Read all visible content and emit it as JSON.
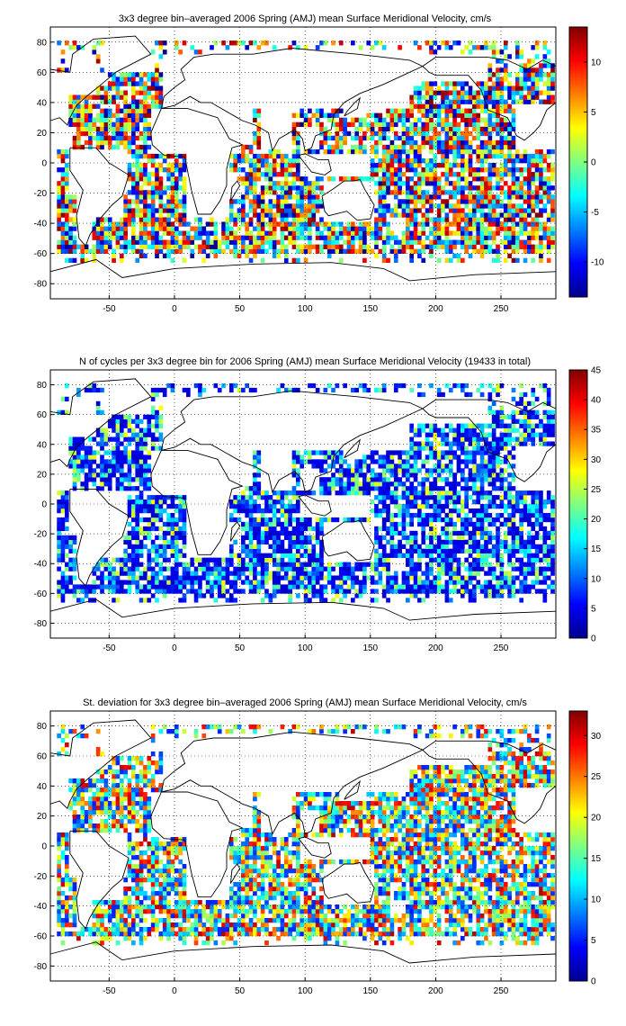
{
  "chart_data": [
    {
      "type": "heatmap",
      "title": "3x3 degree bin–averaged 2006 Spring (AMJ) mean Surface Meridional Velocity, cm/s",
      "xlim": [
        -95,
        292
      ],
      "ylim": [
        -90,
        90
      ],
      "xticks": [
        "-50",
        "0",
        "50",
        "100",
        "150",
        "200",
        "250"
      ],
      "yticks": [
        "80",
        "60",
        "40",
        "20",
        "0",
        "-20",
        "-40",
        "-60",
        "-80"
      ],
      "grid": true,
      "colorbar": {
        "range": [
          -13.5,
          13.5
        ],
        "ticks": [
          "10",
          "5",
          "0",
          "-5",
          "-10"
        ],
        "colormap": "jet"
      },
      "bin_size_deg": 3
    },
    {
      "type": "heatmap",
      "title": "N of cycles per 3x3 degree bin for 2006 Spring (AMJ) mean Surface Meridional Velocity (19433 in total)",
      "xlim": [
        -95,
        292
      ],
      "ylim": [
        -90,
        90
      ],
      "xticks": [
        "-50",
        "0",
        "50",
        "100",
        "150",
        "200",
        "250"
      ],
      "yticks": [
        "80",
        "60",
        "40",
        "20",
        "0",
        "-20",
        "-40",
        "-60",
        "-80"
      ],
      "grid": true,
      "colorbar": {
        "range": [
          0,
          45
        ],
        "ticks": [
          "45",
          "40",
          "35",
          "30",
          "25",
          "20",
          "15",
          "10",
          "5",
          "0"
        ],
        "colormap": "jet"
      },
      "bin_size_deg": 3
    },
    {
      "type": "heatmap",
      "title": "St. deviation for 3x3 degree bin–averaged 2006 Spring (AMJ) mean Surface Meridional Velocity, cm/s",
      "xlim": [
        -95,
        292
      ],
      "ylim": [
        -90,
        90
      ],
      "xticks": [
        "-50",
        "0",
        "50",
        "100",
        "150",
        "200",
        "250"
      ],
      "yticks": [
        "80",
        "60",
        "40",
        "20",
        "0",
        "-20",
        "-40",
        "-60",
        "-80"
      ],
      "grid": true,
      "colorbar": {
        "range": [
          0,
          33
        ],
        "ticks": [
          "30",
          "25",
          "20",
          "15",
          "10",
          "5",
          "0"
        ],
        "colormap": "jet"
      },
      "bin_size_deg": 3
    }
  ]
}
